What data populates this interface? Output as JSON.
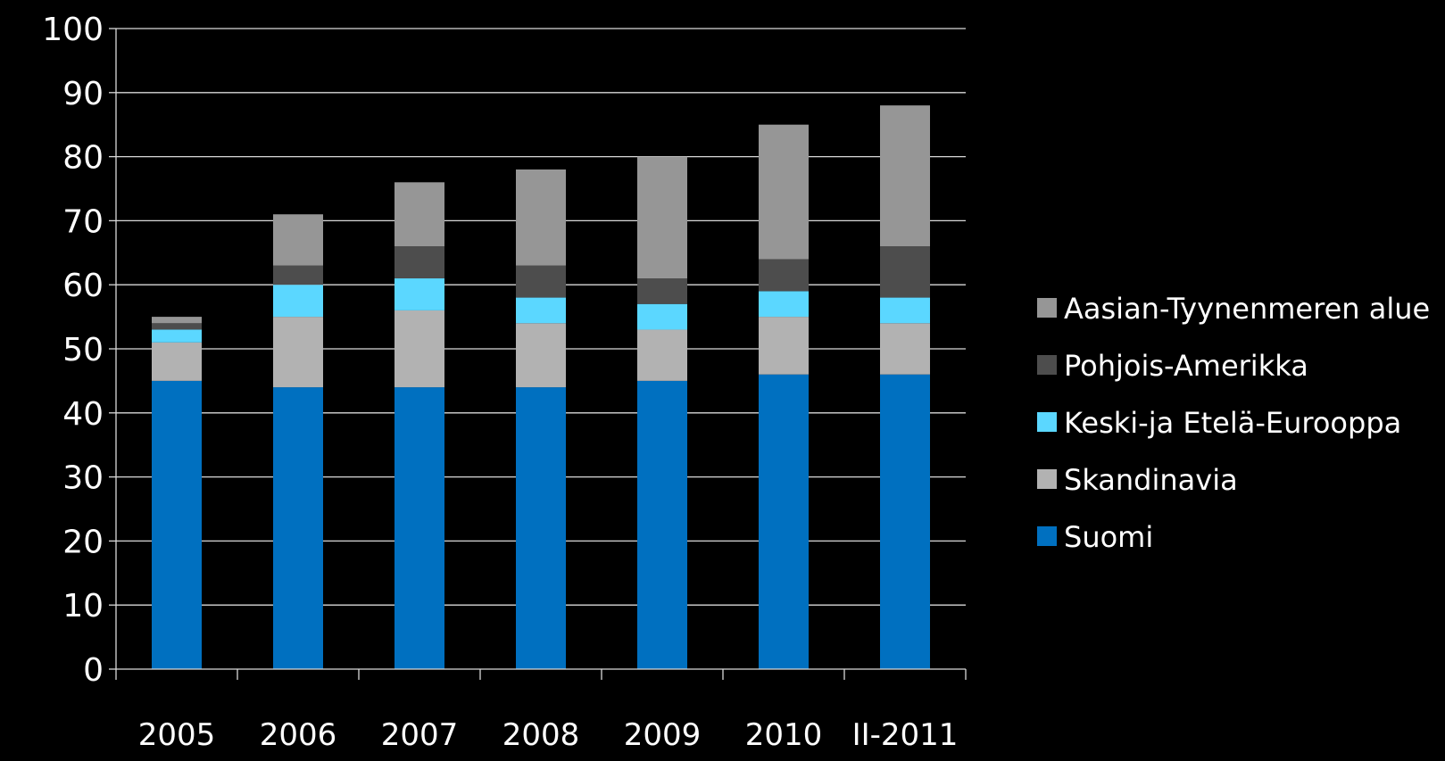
{
  "chart_data": {
    "type": "bar",
    "stacked": true,
    "categories": [
      "2005",
      "2006",
      "2007",
      "2008",
      "2009",
      "2010",
      "II-2011"
    ],
    "series": [
      {
        "name": "Suomi",
        "color": "#0070C0",
        "values": [
          45,
          44,
          44,
          44,
          45,
          46,
          46
        ]
      },
      {
        "name": "Skandinavia",
        "color": "#B2B2B2",
        "values": [
          6,
          11,
          12,
          10,
          8,
          9,
          8
        ]
      },
      {
        "name": "Keski-ja Etelä-Eurooppa",
        "color": "#5BD7FF",
        "values": [
          2,
          5,
          5,
          4,
          4,
          4,
          4
        ]
      },
      {
        "name": "Pohjois-Amerikka",
        "color": "#4D4D4D",
        "values": [
          1,
          3,
          5,
          5,
          4,
          5,
          8
        ]
      },
      {
        "name": "Aasian-Tyynenmeren alue",
        "color": "#969696",
        "values": [
          1,
          8,
          10,
          15,
          19,
          21,
          22
        ]
      }
    ],
    "ylim": [
      0,
      100
    ],
    "yticks": [
      0,
      10,
      20,
      30,
      40,
      50,
      60,
      70,
      80,
      90,
      100
    ],
    "title": "",
    "xlabel": "",
    "ylabel": "",
    "grid": true,
    "legend_position": "right",
    "legend_order": [
      "Aasian-Tyynenmeren alue",
      "Pohjois-Amerikka",
      "Keski-ja Etelä-Eurooppa",
      "Skandinavia",
      "Suomi"
    ],
    "background": "#000000",
    "text_color": "#FFFFFF",
    "grid_color": "#D9D9D9"
  }
}
